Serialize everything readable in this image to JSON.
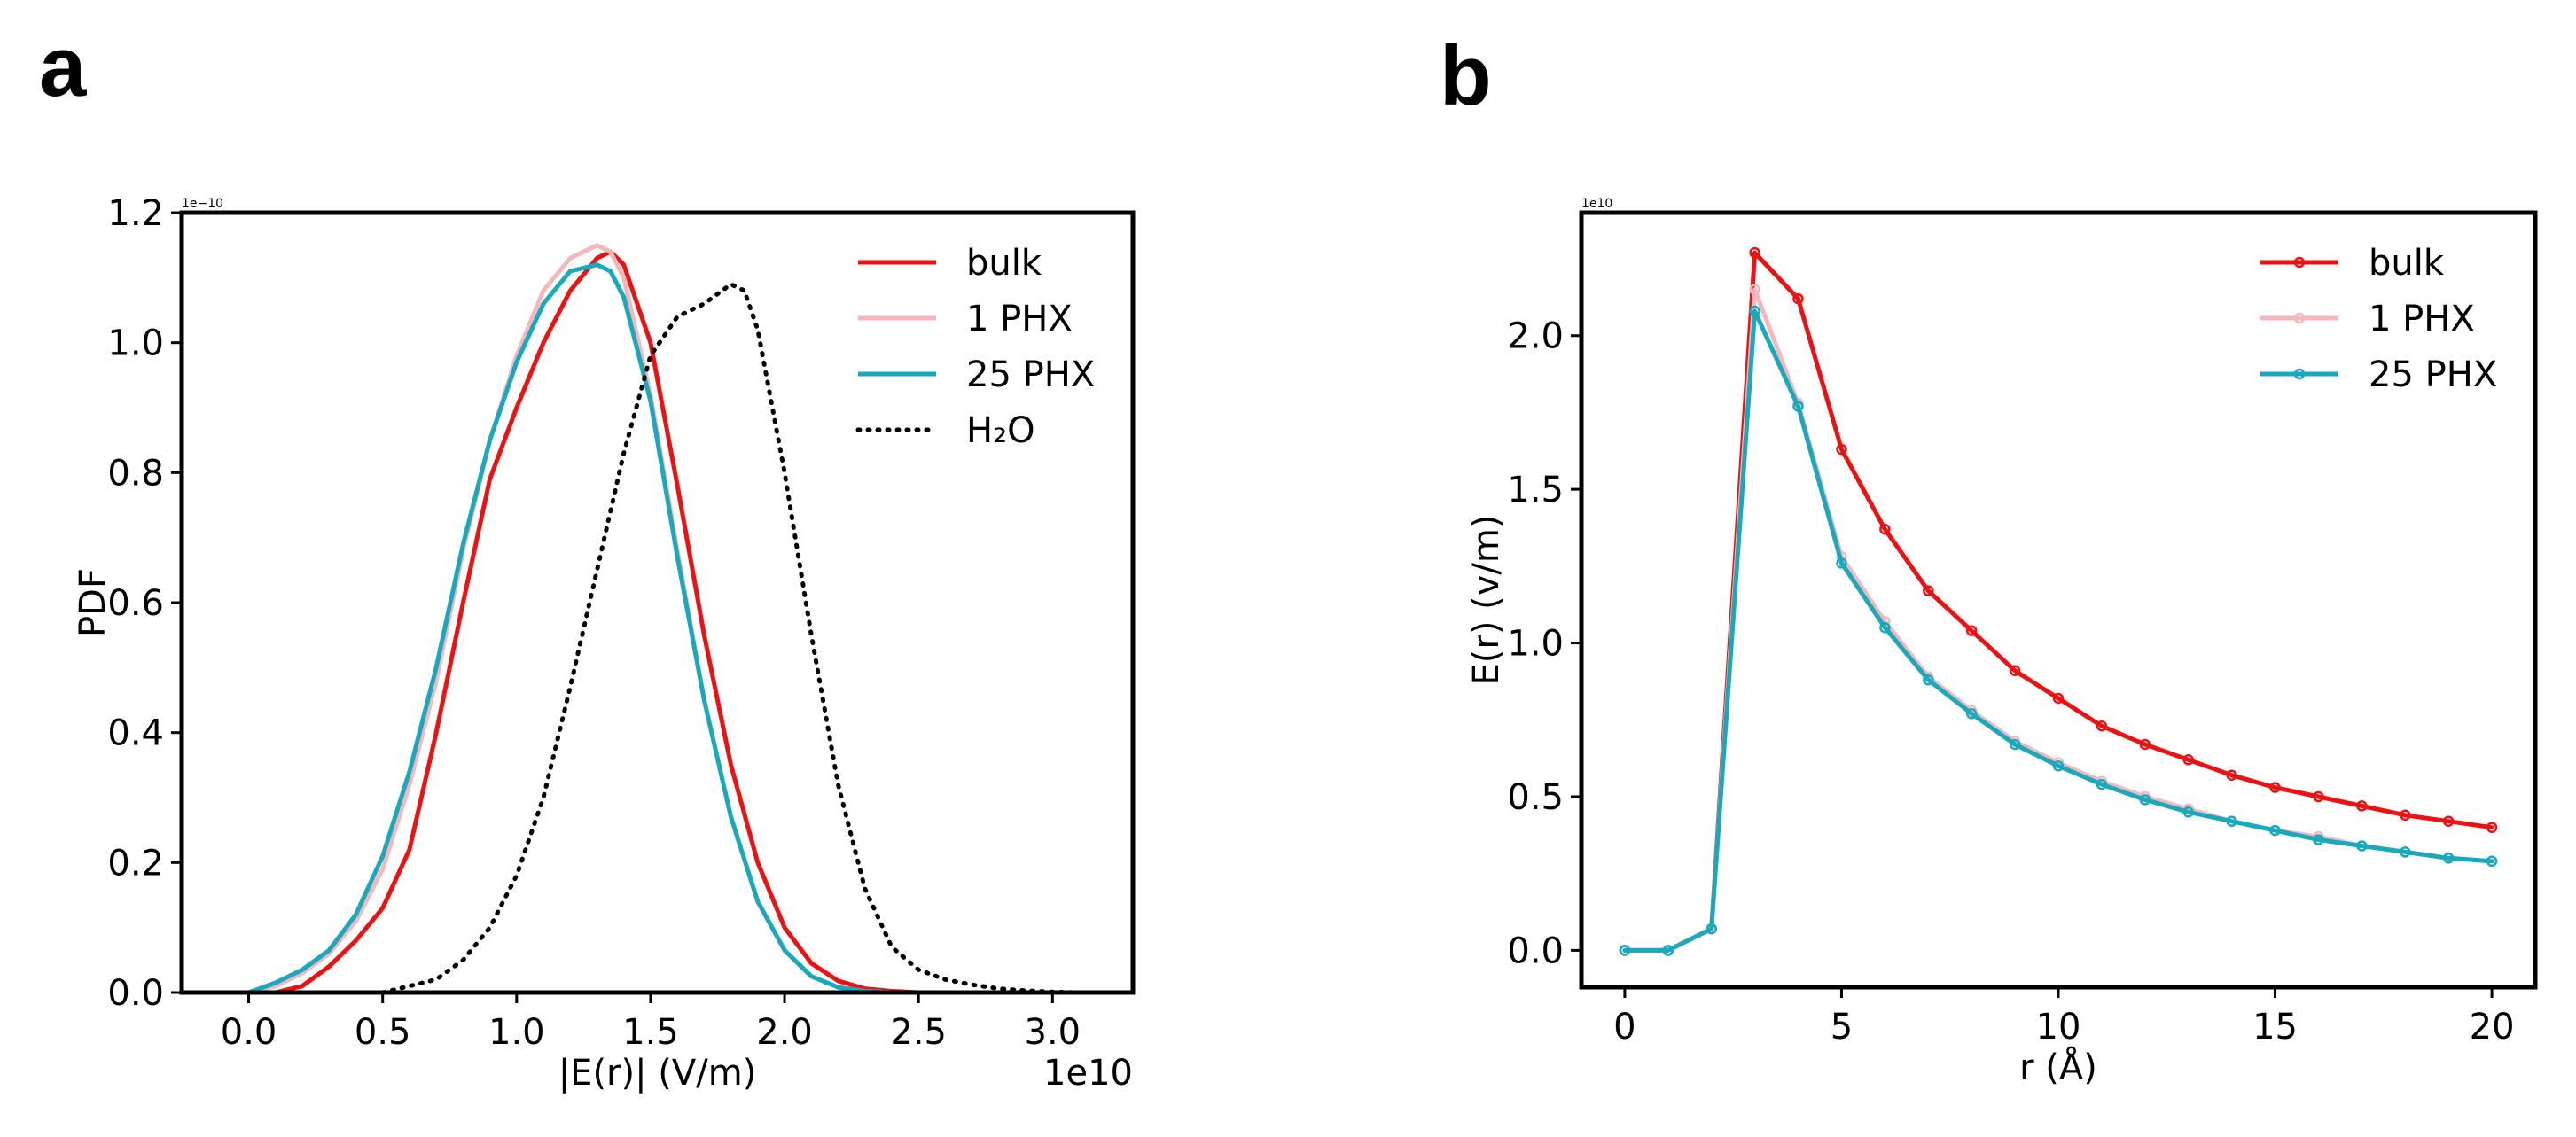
{
  "panels": {
    "a_label": "a",
    "b_label": "b"
  },
  "chart_data": [
    {
      "type": "line",
      "title": "",
      "xlabel": "|E(r)| (V/m)",
      "ylabel": "PDF",
      "x_offset_label": "1e10",
      "y_offset_label": "1e−10",
      "xlim": [
        -0.25,
        3.3
      ],
      "ylim": [
        0.0,
        1.2
      ],
      "xticks": [
        0.0,
        0.5,
        1.0,
        1.5,
        2.0,
        2.5,
        3.0
      ],
      "xtick_labels": [
        "0.0",
        "0.5",
        "1.0",
        "1.5",
        "2.0",
        "2.5",
        "3.0"
      ],
      "yticks": [
        0.0,
        0.2,
        0.4,
        0.6,
        0.8,
        1.0,
        1.2
      ],
      "ytick_labels": [
        "0.0",
        "0.2",
        "0.4",
        "0.6",
        "0.8",
        "1.0",
        "1.2"
      ],
      "grid": false,
      "legend_position": "top-right",
      "series": [
        {
          "name": "bulk",
          "color": "#ee1111",
          "style": "solid",
          "x": [
            0.1,
            0.2,
            0.3,
            0.4,
            0.5,
            0.6,
            0.7,
            0.8,
            0.9,
            1.0,
            1.1,
            1.2,
            1.3,
            1.35,
            1.4,
            1.5,
            1.6,
            1.7,
            1.8,
            1.9,
            2.0,
            2.1,
            2.2,
            2.3,
            2.4,
            2.5
          ],
          "values": [
            0.0,
            0.01,
            0.04,
            0.08,
            0.13,
            0.22,
            0.4,
            0.6,
            0.79,
            0.9,
            1.0,
            1.08,
            1.13,
            1.14,
            1.12,
            1.0,
            0.78,
            0.55,
            0.35,
            0.2,
            0.1,
            0.045,
            0.018,
            0.006,
            0.002,
            0.0
          ]
        },
        {
          "name": "1 PHX",
          "color": "#f4b8bc",
          "style": "solid",
          "x": [
            0.0,
            0.1,
            0.2,
            0.3,
            0.4,
            0.5,
            0.6,
            0.7,
            0.8,
            0.9,
            1.0,
            1.1,
            1.2,
            1.3,
            1.35,
            1.4,
            1.5,
            1.6,
            1.7,
            1.8,
            1.9,
            2.0,
            2.1,
            2.2,
            2.3,
            2.4
          ],
          "values": [
            0.0,
            0.01,
            0.03,
            0.06,
            0.11,
            0.19,
            0.32,
            0.48,
            0.68,
            0.85,
            0.98,
            1.08,
            1.13,
            1.15,
            1.14,
            1.1,
            0.92,
            0.68,
            0.45,
            0.27,
            0.14,
            0.065,
            0.025,
            0.008,
            0.002,
            0.0
          ]
        },
        {
          "name": "25 PHX",
          "color": "#17a9bd",
          "style": "solid",
          "x": [
            0.0,
            0.1,
            0.2,
            0.3,
            0.4,
            0.5,
            0.6,
            0.7,
            0.8,
            0.9,
            1.0,
            1.1,
            1.2,
            1.3,
            1.35,
            1.4,
            1.5,
            1.6,
            1.7,
            1.8,
            1.9,
            2.0,
            2.1,
            2.2,
            2.3,
            2.4
          ],
          "values": [
            0.0,
            0.015,
            0.035,
            0.065,
            0.12,
            0.21,
            0.34,
            0.5,
            0.69,
            0.85,
            0.97,
            1.06,
            1.11,
            1.12,
            1.11,
            1.07,
            0.91,
            0.67,
            0.45,
            0.27,
            0.14,
            0.065,
            0.025,
            0.008,
            0.002,
            0.0
          ]
        },
        {
          "name": "H₂O",
          "color": "#000000",
          "style": "dotted",
          "x": [
            0.5,
            0.6,
            0.7,
            0.8,
            0.9,
            1.0,
            1.1,
            1.2,
            1.3,
            1.4,
            1.5,
            1.6,
            1.7,
            1.8,
            1.85,
            1.9,
            2.0,
            2.1,
            2.2,
            2.3,
            2.4,
            2.5,
            2.6,
            2.7,
            2.8,
            2.9,
            3.0,
            3.1
          ],
          "values": [
            0.0,
            0.01,
            0.02,
            0.05,
            0.1,
            0.18,
            0.3,
            0.47,
            0.65,
            0.83,
            0.98,
            1.04,
            1.06,
            1.09,
            1.08,
            1.02,
            0.8,
            0.55,
            0.32,
            0.16,
            0.07,
            0.035,
            0.02,
            0.012,
            0.006,
            0.003,
            0.001,
            0.0
          ]
        }
      ],
      "legend": [
        "bulk",
        "1 PHX",
        "25 PHX",
        "H₂O"
      ]
    },
    {
      "type": "line",
      "title": "",
      "xlabel": "r (Å)",
      "ylabel": "E(r) (v/m)",
      "y_offset_label": "1e10",
      "xlim": [
        -1,
        21
      ],
      "ylim": [
        -0.12,
        2.4
      ],
      "xticks": [
        0,
        5,
        10,
        15,
        20
      ],
      "xtick_labels": [
        "0",
        "5",
        "10",
        "15",
        "20"
      ],
      "yticks": [
        0.0,
        0.5,
        1.0,
        1.5,
        2.0
      ],
      "ytick_labels": [
        "0.0",
        "0.5",
        "1.0",
        "1.5",
        "2.0"
      ],
      "grid": false,
      "legend_position": "top-right",
      "series": [
        {
          "name": "bulk",
          "color": "#ee1111",
          "x": [
            0,
            1,
            2,
            3,
            4,
            5,
            6,
            7,
            8,
            9,
            10,
            11,
            12,
            13,
            14,
            15,
            16,
            17,
            18,
            19,
            20
          ],
          "values": [
            0.0,
            0.0,
            0.07,
            2.27,
            2.12,
            1.63,
            1.37,
            1.17,
            1.04,
            0.91,
            0.82,
            0.73,
            0.67,
            0.62,
            0.57,
            0.53,
            0.5,
            0.47,
            0.44,
            0.42,
            0.4
          ]
        },
        {
          "name": "1 PHX",
          "color": "#f4b8bc",
          "x": [
            0,
            1,
            2,
            3,
            4,
            5,
            6,
            7,
            8,
            9,
            10,
            11,
            12,
            13,
            14,
            15,
            16,
            17,
            18,
            19,
            20
          ],
          "values": [
            0.0,
            0.0,
            0.07,
            2.15,
            1.78,
            1.28,
            1.07,
            0.89,
            0.78,
            0.68,
            0.61,
            0.55,
            0.5,
            0.46,
            0.42,
            0.39,
            0.37,
            0.34,
            0.32,
            0.3,
            0.29
          ]
        },
        {
          "name": "25 PHX",
          "color": "#17a9bd",
          "x": [
            0,
            1,
            2,
            3,
            4,
            5,
            6,
            7,
            8,
            9,
            10,
            11,
            12,
            13,
            14,
            15,
            16,
            17,
            18,
            19,
            20
          ],
          "values": [
            0.0,
            0.0,
            0.07,
            2.08,
            1.77,
            1.26,
            1.05,
            0.88,
            0.77,
            0.67,
            0.6,
            0.54,
            0.49,
            0.45,
            0.42,
            0.39,
            0.36,
            0.34,
            0.32,
            0.3,
            0.29
          ]
        }
      ],
      "legend": [
        "bulk",
        "1 PHX",
        "25 PHX"
      ]
    }
  ]
}
